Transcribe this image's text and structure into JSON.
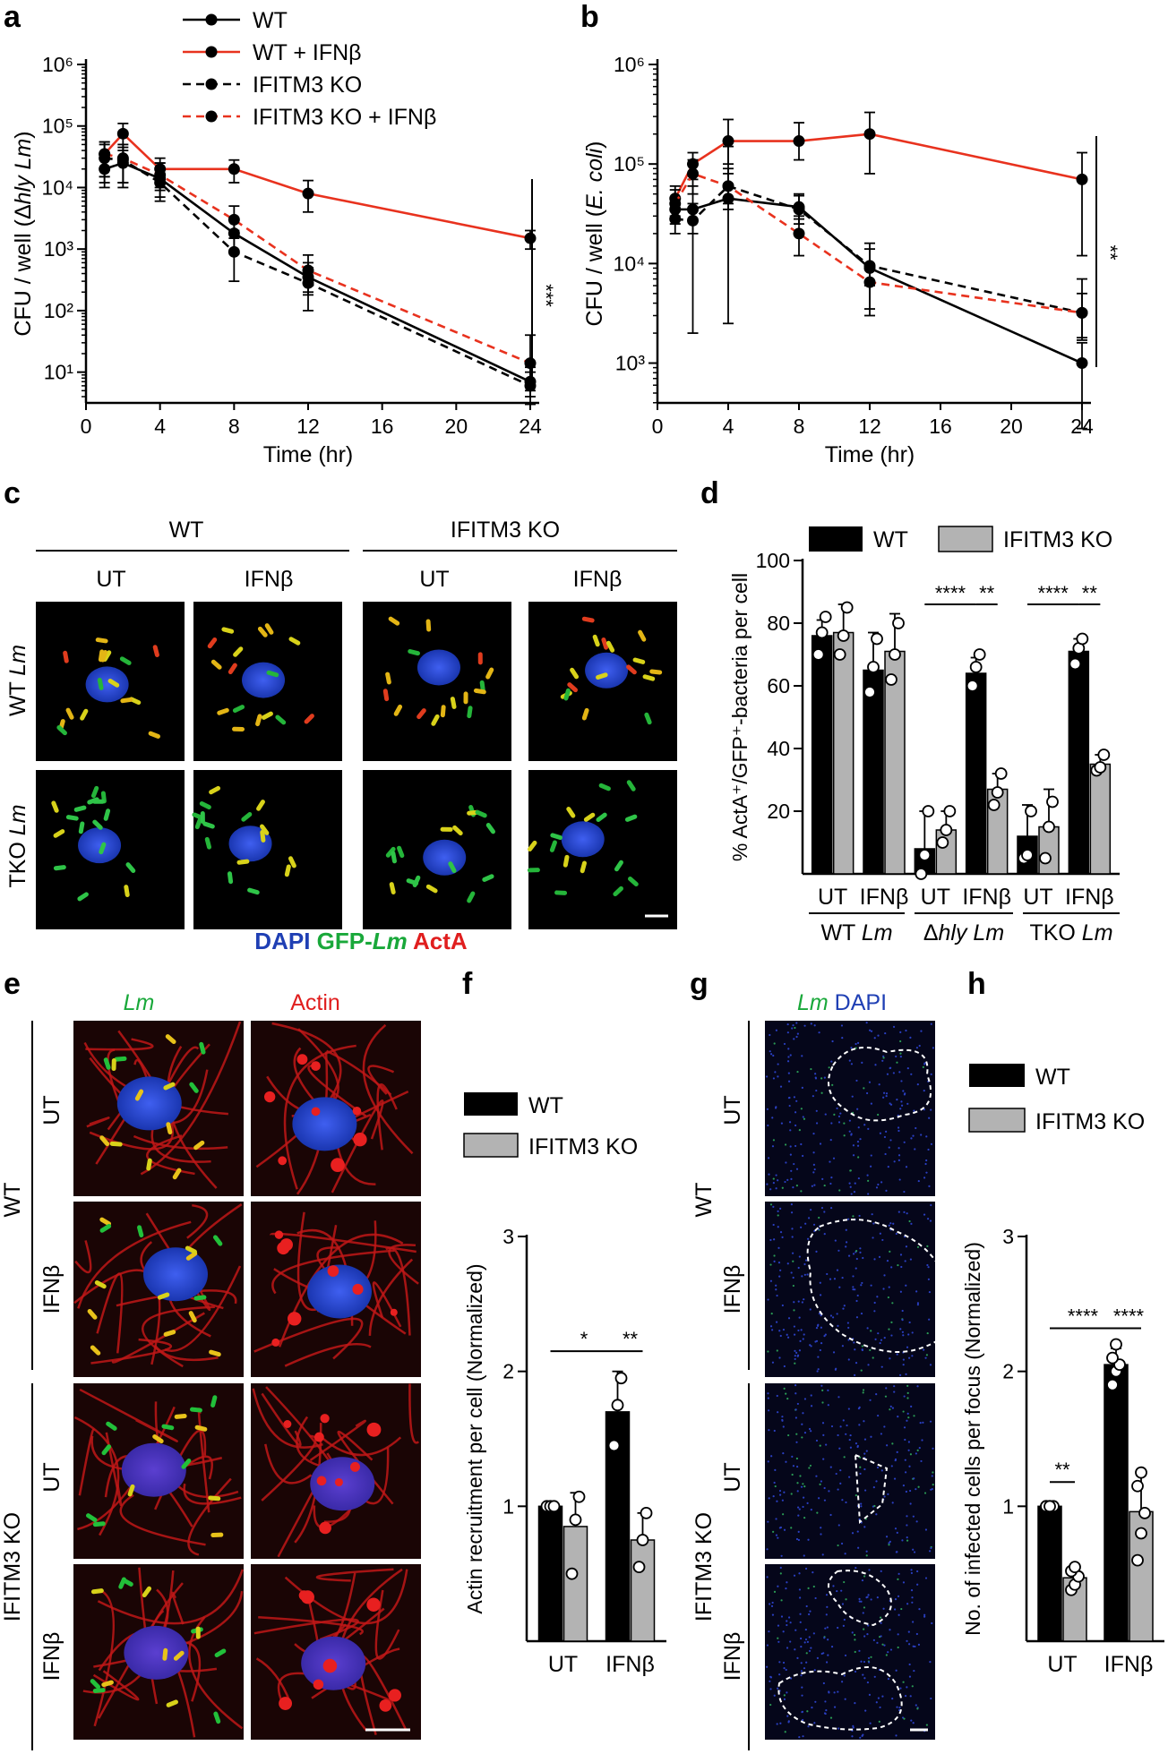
{
  "panels": {
    "a": "a",
    "b": "b",
    "c": "c",
    "d": "d",
    "e": "e",
    "f": "f",
    "g": "g",
    "h": "h"
  },
  "colors": {
    "black": "#000000",
    "red": "#e8321e",
    "gray": "#b3b3b3",
    "dapi": "#1f3fb4",
    "gfp": "#19a83a",
    "acta": "#e01e1e"
  },
  "chart_data": [
    {
      "id": "a",
      "type": "line",
      "yscale": "log",
      "xlabel": "Time (hr)",
      "ylabel_pre": "CFU / well (Δ",
      "ylabel_ital": "hly Lm",
      "ylabel_post": ")",
      "xticks": [
        0,
        4,
        8,
        12,
        16,
        20,
        24
      ],
      "yticks": [
        "10¹",
        "10²",
        "10³",
        "10⁴",
        "10⁵",
        "10⁶"
      ],
      "ylim_exp": [
        0.5,
        6
      ],
      "legend": [
        "WT",
        "WT + IFNβ",
        "IFITM3 KO",
        "IFITM3 KO + IFNβ"
      ],
      "significance": "***",
      "series": [
        {
          "name": "WT",
          "style": "black-solid",
          "x": [
            1,
            2,
            4,
            8,
            12,
            24
          ],
          "y": [
            20000,
            25000,
            14000,
            1800,
            350,
            7
          ],
          "err_low": [
            10000,
            12000,
            7000,
            900,
            180,
            4
          ],
          "err_high": [
            35000,
            40000,
            25000,
            3000,
            600,
            12
          ]
        },
        {
          "name": "WT + IFNβ",
          "style": "red-solid",
          "x": [
            1,
            2,
            4,
            8,
            12,
            24
          ],
          "y": [
            35000,
            75000,
            20000,
            20000,
            8000,
            1500
          ],
          "err_low": [
            15000,
            25000,
            10000,
            12000,
            4000,
            1000
          ],
          "err_high": [
            55000,
            110000,
            30000,
            28000,
            13000,
            2000
          ]
        },
        {
          "name": "IFITM3 KO",
          "style": "black-dash",
          "x": [
            1,
            2,
            4,
            8,
            12,
            24
          ],
          "y": [
            30000,
            28000,
            12000,
            900,
            280,
            6
          ],
          "err_low": [
            12000,
            10000,
            6000,
            300,
            100,
            3
          ],
          "err_high": [
            50000,
            45000,
            20000,
            2000,
            500,
            10
          ]
        },
        {
          "name": "IFITM3 KO + IFNβ",
          "style": "red-dash",
          "x": [
            1,
            2,
            4,
            8,
            12,
            24
          ],
          "y": [
            35000,
            30000,
            16000,
            3000,
            450,
            14
          ],
          "err_low": [
            15000,
            12000,
            9000,
            1500,
            200,
            5
          ],
          "err_high": [
            55000,
            50000,
            25000,
            5000,
            800,
            40
          ]
        }
      ]
    },
    {
      "id": "b",
      "type": "line",
      "yscale": "log",
      "xlabel": "Time (hr)",
      "ylabel_pre": "CFU / well (",
      "ylabel_ital": "E. coli",
      "ylabel_post": ")",
      "xticks": [
        0,
        4,
        8,
        12,
        16,
        20,
        24
      ],
      "yticks": [
        "10³",
        "10⁴",
        "10⁵",
        "10⁶"
      ],
      "ylim_exp": [
        2.6,
        6
      ],
      "significance": "**",
      "series": [
        {
          "name": "WT",
          "style": "black-solid",
          "x": [
            1,
            2,
            4,
            8,
            12,
            24
          ],
          "y": [
            35000,
            35000,
            45000,
            37000,
            9000,
            1000
          ],
          "err_low": [
            25000,
            2000,
            2500,
            28000,
            3000,
            220
          ],
          "err_high": [
            45000,
            60000,
            150000,
            48000,
            16000,
            1600
          ]
        },
        {
          "name": "WT + IFNβ",
          "style": "red-solid",
          "x": [
            1,
            2,
            4,
            8,
            12,
            24
          ],
          "y": [
            45000,
            100000,
            170000,
            170000,
            200000,
            70000
          ],
          "err_low": [
            30000,
            70000,
            100000,
            110000,
            80000,
            12000
          ],
          "err_high": [
            60000,
            130000,
            280000,
            260000,
            330000,
            130000
          ]
        },
        {
          "name": "IFITM3 KO",
          "style": "black-dash",
          "x": [
            1,
            2,
            4,
            8,
            12,
            24
          ],
          "y": [
            28000,
            27000,
            60000,
            35000,
            9500,
            3200
          ],
          "err_low": [
            20000,
            20000,
            35000,
            25000,
            6000,
            1700
          ],
          "err_high": [
            40000,
            40000,
            90000,
            50000,
            14000,
            7000
          ]
        },
        {
          "name": "IFITM3 KO + IFNβ",
          "style": "red-dash",
          "x": [
            1,
            2,
            4,
            8,
            12,
            24
          ],
          "y": [
            40000,
            80000,
            60000,
            20000,
            6500,
            3200
          ],
          "err_low": [
            28000,
            50000,
            40000,
            12000,
            3500,
            1800
          ],
          "err_high": [
            55000,
            110000,
            80000,
            30000,
            9000,
            5000
          ]
        }
      ]
    },
    {
      "id": "d",
      "type": "bar",
      "ylabel": "% ActA⁺/GFP⁺-bacteria per cell",
      "yticks": [
        20,
        40,
        60,
        80,
        100
      ],
      "ylim": [
        0,
        100
      ],
      "legend": [
        "WT",
        "IFITM3 KO"
      ],
      "categories": [
        "UT",
        "IFNβ",
        "UT",
        "IFNβ",
        "UT",
        "IFNβ"
      ],
      "groups": [
        "WT Lm",
        "Δhly Lm",
        "TKO Lm"
      ],
      "series": [
        {
          "name": "WT",
          "values": [
            76,
            65,
            8,
            64,
            12,
            71
          ],
          "err": [
            5,
            12,
            12,
            5,
            10,
            4
          ],
          "points": [
            [
              70,
              77,
              82
            ],
            [
              58,
              66,
              75
            ],
            [
              0,
              6,
              20
            ],
            [
              60,
              66,
              70
            ],
            [
              5,
              6,
              20
            ],
            [
              67,
              72,
              75
            ]
          ]
        },
        {
          "name": "IFITM3 KO",
          "values": [
            77,
            71,
            14,
            27,
            15,
            35
          ],
          "err": [
            9,
            12,
            6,
            5,
            12,
            3
          ],
          "points": [
            [
              70,
              76,
              85
            ],
            [
              62,
              70,
              80
            ],
            [
              10,
              14,
              20
            ],
            [
              22,
              26,
              32
            ],
            [
              5,
              15,
              23
            ],
            [
              33,
              34,
              38
            ]
          ]
        }
      ],
      "significance": [
        {
          "label": "****",
          "from": 2,
          "to": 3,
          "side": "left-bar"
        },
        {
          "label": "**",
          "from": 3,
          "to": 3,
          "side": "within"
        },
        {
          "label": "****",
          "from": 4,
          "to": 5,
          "side": "left-bar"
        },
        {
          "label": "**",
          "from": 5,
          "to": 5,
          "side": "within"
        }
      ]
    },
    {
      "id": "f",
      "type": "bar",
      "ylabel": "Actin recruitment per cell (Normalized)",
      "yticks": [
        1,
        2,
        3
      ],
      "ylim": [
        0,
        3
      ],
      "legend": [
        "WT",
        "IFITM3 KO"
      ],
      "categories": [
        "UT",
        "IFNβ"
      ],
      "series": [
        {
          "name": "WT",
          "values": [
            1.0,
            1.7
          ],
          "err": [
            0.01,
            0.3
          ],
          "points": [
            [
              1.0,
              1.0,
              1.0
            ],
            [
              1.45,
              1.75,
              1.95
            ]
          ]
        },
        {
          "name": "IFITM3 KO",
          "values": [
            0.85,
            0.75
          ],
          "err": [
            0.25,
            0.2
          ],
          "points": [
            [
              0.5,
              0.9,
              1.07
            ],
            [
              0.55,
              0.75,
              0.95
            ]
          ]
        }
      ],
      "significance": [
        "*",
        "**"
      ]
    },
    {
      "id": "h",
      "type": "bar",
      "ylabel": "No. of infected cells per focus (Normalized)",
      "yticks": [
        1,
        2,
        3
      ],
      "ylim": [
        0,
        3
      ],
      "legend": [
        "WT",
        "IFITM3 KO"
      ],
      "categories": [
        "UT",
        "IFNβ"
      ],
      "series": [
        {
          "name": "WT",
          "values": [
            1.0,
            2.05
          ],
          "err": [
            0.01,
            0.12
          ],
          "points": [
            [
              1.0,
              1.0,
              1.0,
              1.0,
              1.0
            ],
            [
              1.9,
              2.0,
              2.05,
              2.1,
              2.2
            ]
          ]
        },
        {
          "name": "IFITM3 KO",
          "values": [
            0.47,
            0.96
          ],
          "err": [
            0.08,
            0.27
          ],
          "points": [
            [
              0.38,
              0.42,
              0.48,
              0.52,
              0.55
            ],
            [
              0.6,
              0.8,
              0.95,
              1.15,
              1.25
            ]
          ]
        }
      ],
      "significance": [
        "**",
        "****",
        "****"
      ]
    }
  ],
  "micrographs": {
    "c": {
      "groups": [
        "WT",
        "IFITM3 KO"
      ],
      "columns": [
        "UT",
        "IFNβ",
        "UT",
        "IFNβ"
      ],
      "rows": [
        {
          "pre": "WT ",
          "ital": "Lm"
        },
        {
          "pre": "TKO ",
          "ital": "Lm"
        }
      ],
      "legend": {
        "dapi": "DAPI",
        "gfp_pre": "GFP-",
        "gfp_ital": "Lm",
        "acta": "ActA"
      }
    },
    "e": {
      "columns": [
        "Lm",
        "Actin"
      ],
      "groups": [
        "WT",
        "IFITM3 KO"
      ],
      "rows": [
        "UT",
        "IFNβ",
        "UT",
        "IFNβ"
      ]
    },
    "g": {
      "title_ital": "Lm",
      "title_rest": " DAPI",
      "groups": [
        "WT",
        "IFITM3 KO"
      ],
      "rows": [
        "UT",
        "IFNβ",
        "UT",
        "IFNβ"
      ]
    }
  }
}
